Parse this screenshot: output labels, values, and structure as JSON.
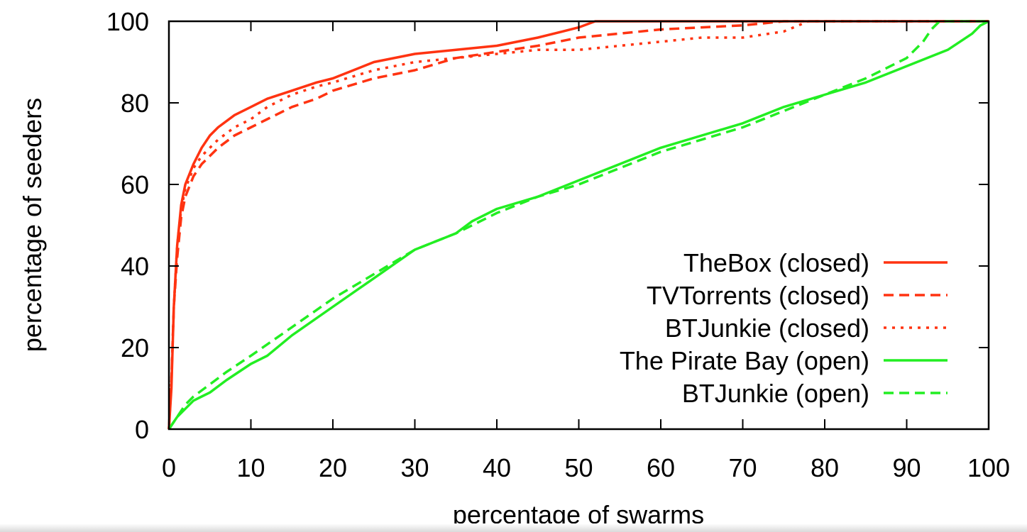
{
  "colors": {
    "red": "#ff3311",
    "green": "#22ee22",
    "axis": "#000000"
  },
  "chart_data": {
    "type": "line",
    "xlabel": "percentage of swarms",
    "ylabel": "percentage of seeders",
    "xlim": [
      0,
      100
    ],
    "ylim": [
      0,
      100
    ],
    "xticks": [
      "0",
      "10",
      "20",
      "30",
      "40",
      "50",
      "60",
      "70",
      "80",
      "90",
      "100"
    ],
    "yticks": [
      "0",
      "20",
      "40",
      "60",
      "80",
      "100"
    ],
    "grid": false,
    "legend_position": "bottom-right",
    "series": [
      {
        "name": "TheBox (closed)",
        "color": "#ff3311",
        "dash": "solid",
        "x": [
          0,
          0.3,
          0.6,
          1,
          1.5,
          2,
          3,
          4,
          5,
          6,
          8,
          10,
          12,
          15,
          18,
          20,
          25,
          30,
          35,
          40,
          45,
          48,
          50,
          52,
          55,
          60,
          70,
          80,
          90,
          100
        ],
        "y": [
          0,
          10,
          30,
          45,
          55,
          60,
          65,
          69,
          72,
          74,
          77,
          79,
          81,
          83,
          85,
          86,
          90,
          92,
          93,
          94,
          96,
          97.5,
          98.5,
          100,
          100,
          100,
          100,
          100,
          100,
          100
        ]
      },
      {
        "name": "TVTorrents (closed)",
        "color": "#ff3311",
        "dash": "dashed",
        "x": [
          0,
          0.3,
          0.6,
          1,
          1.5,
          2,
          3,
          4,
          5,
          6,
          8,
          10,
          12,
          15,
          18,
          20,
          25,
          30,
          35,
          40,
          45,
          50,
          55,
          60,
          65,
          70,
          75,
          80,
          90,
          100
        ],
        "y": [
          0,
          12,
          30,
          42,
          52,
          57,
          62,
          65,
          67,
          69,
          72,
          74,
          76,
          79,
          81,
          83,
          86,
          88,
          91,
          92.5,
          94,
          96,
          97,
          98,
          98.5,
          99,
          100,
          100,
          100,
          100
        ]
      },
      {
        "name": "BTJunkie (closed)",
        "color": "#ff3311",
        "dash": "dotted",
        "x": [
          0,
          0.3,
          0.6,
          1,
          1.5,
          2,
          3,
          4,
          5,
          6,
          8,
          10,
          12,
          15,
          18,
          20,
          25,
          30,
          35,
          40,
          45,
          50,
          55,
          60,
          65,
          70,
          75,
          78,
          80,
          100
        ],
        "y": [
          0,
          12,
          30,
          45,
          54,
          59,
          64,
          67,
          69,
          71,
          74,
          76,
          79,
          82,
          84,
          85,
          88,
          90,
          91,
          92,
          93,
          93,
          94,
          95,
          96,
          96,
          97.5,
          100,
          100,
          100
        ]
      },
      {
        "name": "The Pirate Bay (open)",
        "color": "#22ee22",
        "dash": "solid",
        "x": [
          0,
          1,
          2,
          3,
          4,
          5,
          7,
          10,
          12,
          15,
          20,
          25,
          30,
          35,
          37,
          40,
          45,
          50,
          55,
          60,
          65,
          70,
          75,
          80,
          85,
          90,
          95,
          98,
          99,
          100
        ],
        "y": [
          0,
          3,
          5,
          7,
          8,
          9,
          12,
          16,
          18,
          23,
          30,
          37,
          44,
          48,
          51,
          54,
          57,
          61,
          65,
          69,
          72,
          75,
          79,
          82,
          85,
          89,
          93,
          97,
          99,
          100
        ]
      },
      {
        "name": "BTJunkie (open)",
        "color": "#22ee22",
        "dash": "dashed",
        "x": [
          0,
          1,
          2,
          3,
          5,
          7,
          10,
          15,
          20,
          25,
          30,
          35,
          40,
          45,
          50,
          55,
          60,
          65,
          70,
          75,
          80,
          85,
          88,
          90,
          91,
          92,
          93,
          94,
          100
        ],
        "y": [
          0,
          3,
          6,
          8,
          11,
          14,
          18,
          25,
          32,
          38,
          44,
          48,
          53,
          57,
          60,
          64,
          68,
          71,
          74,
          78,
          82,
          86,
          89,
          91,
          93,
          95,
          98,
          100,
          100
        ]
      }
    ]
  }
}
